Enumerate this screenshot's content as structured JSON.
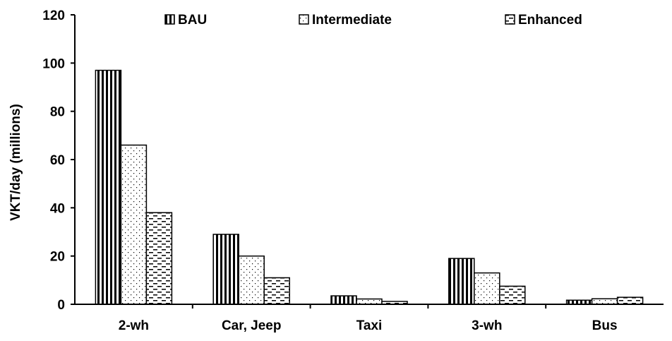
{
  "chart_data": {
    "type": "bar",
    "title": "",
    "xlabel": "",
    "ylabel": "VKT/day (millions)",
    "ylim": [
      0,
      120
    ],
    "yticks": [
      0,
      20,
      40,
      60,
      80,
      100,
      120
    ],
    "grid": false,
    "legend_position": "top",
    "categories": [
      "2-wh",
      "Car, Jeep",
      "Taxi",
      "3-wh",
      "Bus"
    ],
    "series": [
      {
        "name": "BAU",
        "pattern": "vertical-lines",
        "values": [
          97,
          29,
          3.5,
          19,
          1.7
        ]
      },
      {
        "name": "Intermediate",
        "pattern": "dots",
        "values": [
          66,
          20,
          2.2,
          13,
          2.3
        ]
      },
      {
        "name": "Enhanced",
        "pattern": "dashes",
        "values": [
          38,
          11,
          1.2,
          7.5,
          2.9
        ]
      }
    ]
  }
}
